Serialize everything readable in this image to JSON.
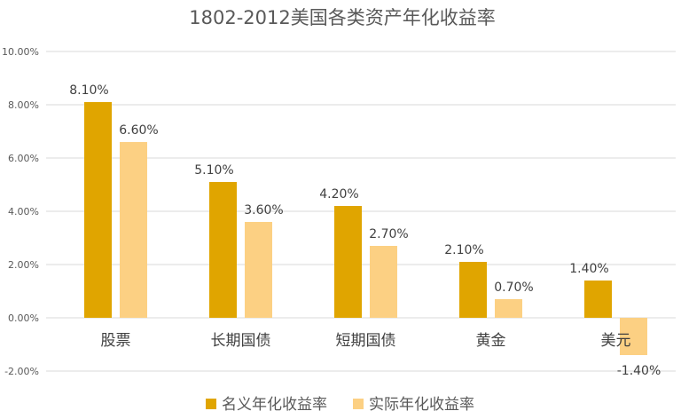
{
  "chart_data": {
    "type": "bar",
    "title": "1802-2012美国各类资产年化收益率",
    "categories": [
      "股票",
      "长期国债",
      "短期国债",
      "黄金",
      "美元"
    ],
    "series": [
      {
        "name": "名义年化收益率",
        "values": [
          8.1,
          5.1,
          4.2,
          2.1,
          1.4
        ],
        "labels": [
          "8.10%",
          "5.10%",
          "4.20%",
          "2.10%",
          "1.40%"
        ],
        "color": "#E0A500"
      },
      {
        "name": "实际年化收益率",
        "values": [
          6.6,
          3.6,
          2.7,
          0.7,
          -1.4
        ],
        "labels": [
          "6.60%",
          "3.60%",
          "2.70%",
          "0.70%",
          "-1.40%"
        ],
        "color": "#FCD083"
      }
    ],
    "yticks": [
      -2,
      0,
      2,
      4,
      6,
      8,
      10
    ],
    "ytick_labels": [
      "-2.00%",
      "0.00%",
      "2.00%",
      "4.00%",
      "6.00%",
      "8.00%",
      "10.00%"
    ],
    "ylim": [
      -2,
      10
    ],
    "xlabel": "",
    "ylabel": "",
    "grid": true,
    "legend_position": "bottom",
    "gridline_color": "#D9D9D9"
  }
}
